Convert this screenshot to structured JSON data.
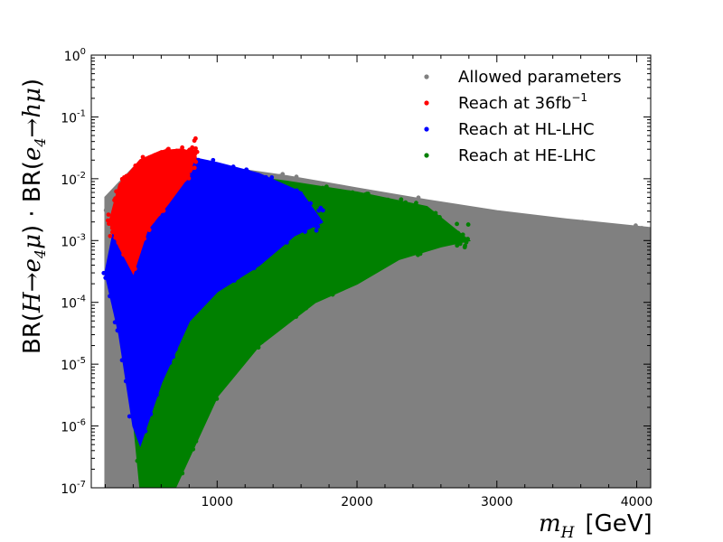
{
  "chart_data": {
    "type": "scatter",
    "xlabel": "m_H [GeV]",
    "ylabel": "BR(H→e4μ) · BR(e4→hμ)",
    "xlim": [
      100,
      4100
    ],
    "ylim_log10": [
      -7,
      0
    ],
    "y_scale": "log",
    "grid": false,
    "legend_position": "top-right",
    "x_ticks": [
      1000,
      2000,
      3000,
      4000
    ],
    "x_tick_labels": [
      "1000",
      "2000",
      "3000",
      "4000"
    ],
    "y_ticks_log10": [
      -7,
      -6,
      -5,
      -4,
      -3,
      -2,
      -1,
      0
    ],
    "y_tick_labels": [
      {
        "base": "10",
        "exp": "-7"
      },
      {
        "base": "10",
        "exp": "-6"
      },
      {
        "base": "10",
        "exp": "-5"
      },
      {
        "base": "10",
        "exp": "-4"
      },
      {
        "base": "10",
        "exp": "-3"
      },
      {
        "base": "10",
        "exp": "-2"
      },
      {
        "base": "10",
        "exp": "-1"
      },
      {
        "base": "10",
        "exp": "0"
      }
    ],
    "series": [
      {
        "name": "Allowed parameters",
        "color": "#808080",
        "region": {
          "x_min": 200,
          "x_max": 4100,
          "upper_boundary": [
            [
              200,
              0.005
            ],
            [
              400,
              0.015
            ],
            [
              600,
              0.022
            ],
            [
              800,
              0.02
            ],
            [
              1000,
              0.016
            ],
            [
              1500,
              0.011
            ],
            [
              2000,
              0.007
            ],
            [
              2500,
              0.0045
            ],
            [
              3000,
              0.003
            ],
            [
              3500,
              0.0022
            ],
            [
              4100,
              0.0016
            ]
          ],
          "lower_boundary": [
            [
              200,
              1e-07
            ],
            [
              4100,
              1e-07
            ]
          ]
        },
        "sample_points": [
          [
            220,
            1.2e-06
          ],
          [
            250,
            5e-05
          ],
          [
            270,
            3e-06
          ],
          [
            290,
            1.5e-05
          ],
          [
            300,
            0.0002
          ],
          [
            320,
            6e-07
          ],
          [
            340,
            1e-05
          ]
        ]
      },
      {
        "name": "Reach at HE-LHC",
        "color": "#008000",
        "region": {
          "upper_boundary": [
            [
              300,
              0.0003
            ],
            [
              500,
              0.004
            ],
            [
              800,
              0.01
            ],
            [
              1200,
              0.011
            ],
            [
              1500,
              0.009
            ],
            [
              2000,
              0.006
            ],
            [
              2500,
              0.0035
            ],
            [
              2800,
              0.001
            ]
          ],
          "lower_boundary": [
            [
              300,
              0.0003
            ],
            [
              450,
              1e-07
            ],
            [
              700,
              1e-07
            ],
            [
              1000,
              3e-06
            ],
            [
              1300,
              2e-05
            ],
            [
              1700,
              0.0001
            ],
            [
              2000,
              0.0002
            ],
            [
              2300,
              0.0005
            ],
            [
              2600,
              0.0008
            ],
            [
              2800,
              0.001
            ]
          ]
        }
      },
      {
        "name": "Reach at HL-LHC",
        "color": "#0000ff",
        "region": {
          "upper_boundary": [
            [
              200,
              0.0003
            ],
            [
              300,
              0.004
            ],
            [
              500,
              0.015
            ],
            [
              700,
              0.025
            ],
            [
              1000,
              0.018
            ],
            [
              1300,
              0.012
            ],
            [
              1600,
              0.006
            ],
            [
              1750,
              0.002
            ]
          ],
          "lower_boundary": [
            [
              200,
              0.0003
            ],
            [
              300,
              3e-05
            ],
            [
              400,
              1e-06
            ],
            [
              450,
              5e-07
            ],
            [
              600,
              5e-06
            ],
            [
              800,
              5e-05
            ],
            [
              1000,
              0.00015
            ],
            [
              1300,
              0.0004
            ],
            [
              1550,
              0.0012
            ],
            [
              1750,
              0.002
            ]
          ]
        }
      },
      {
        "name": "Reach at 36fb⁻¹",
        "color": "#ff0000",
        "region": {
          "upper_boundary": [
            [
              230,
              0.002
            ],
            [
              300,
              0.008
            ],
            [
              450,
              0.02
            ],
            [
              600,
              0.028
            ],
            [
              750,
              0.03
            ],
            [
              850,
              0.025
            ]
          ],
          "lower_boundary": [
            [
              230,
              0.002
            ],
            [
              300,
              0.0008
            ],
            [
              400,
              0.0003
            ],
            [
              500,
              0.0015
            ],
            [
              650,
              0.004
            ],
            [
              780,
              0.01
            ],
            [
              850,
              0.025
            ]
          ]
        }
      }
    ],
    "legend_order": [
      "Allowed parameters",
      "Reach at 36fb⁻¹",
      "Reach at HL-LHC",
      "Reach at HE-LHC"
    ],
    "legend_display": [
      {
        "text": "Allowed parameters",
        "sup": ""
      },
      {
        "text": "Reach at 36fb",
        "sup": "−1"
      },
      {
        "text": "Reach at HL-LHC",
        "sup": ""
      },
      {
        "text": "Reach at HE-LHC",
        "sup": ""
      }
    ],
    "axis_label_display": {
      "x_var": "m",
      "x_sub": "H",
      "x_unit": "[GeV]",
      "y_parts": [
        "BR(",
        "H→e",
        "4",
        "μ",
        ")  · BR(",
        "e",
        "4",
        "→hμ",
        ")"
      ]
    }
  }
}
